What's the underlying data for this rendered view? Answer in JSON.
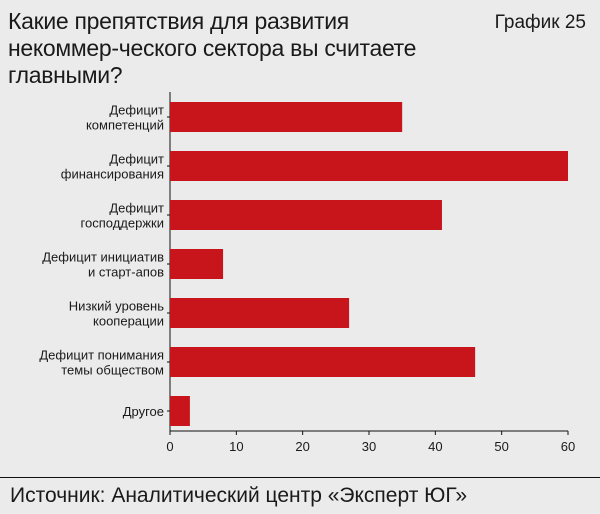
{
  "header": {
    "title": "Какие препятствия для развития некоммер-ческого сектора вы считаете главными?",
    "chart_number": "График 25"
  },
  "footer": {
    "source": "Источник: Аналитический центр «Эксперт ЮГ»"
  },
  "colors": {
    "bar": "#c8151b",
    "background": "#ebebeb",
    "gridline": "#b5b5b5"
  },
  "chart_data": {
    "type": "bar",
    "orientation": "horizontal",
    "categories": [
      [
        "Дефицит",
        "компетенций"
      ],
      [
        "Дефицит",
        "финансирования"
      ],
      [
        "Дефицит",
        "господдержки"
      ],
      [
        "Дефицит инициатив",
        "и старт-апов"
      ],
      [
        "Низкий уровень",
        "кооперации"
      ],
      [
        "Дефицит понимания",
        "темы обществом"
      ],
      [
        "Другое"
      ]
    ],
    "values": [
      35,
      60,
      41,
      8,
      27,
      46,
      3
    ],
    "xlim": [
      0,
      60
    ],
    "xticks": [
      0,
      10,
      20,
      30,
      40,
      50,
      60
    ],
    "grid": false,
    "legend": "none"
  }
}
